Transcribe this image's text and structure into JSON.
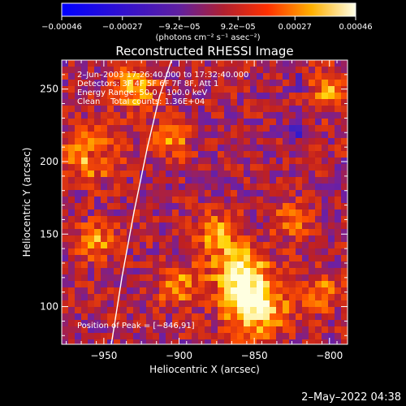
{
  "chart_data": {
    "type": "heatmap",
    "title": "Reconstructed RHESSI Image",
    "xlabel": "Heliocentric X (arcsec)",
    "ylabel": "Heliocentric Y (arcsec)",
    "xlim": [
      -978,
      -788
    ],
    "ylim": [
      74,
      270
    ],
    "xticks": [
      -950,
      -900,
      -850,
      -800
    ],
    "xtick_labels": [
      "−950",
      "−900",
      "−850",
      "−800"
    ],
    "yticks": [
      100,
      150,
      200,
      250
    ],
    "ytick_labels": [
      "100",
      "150",
      "200",
      "250"
    ],
    "colorbar": {
      "range": [
        -0.00046,
        0.00046
      ],
      "ticks": [
        -0.00046,
        -0.00027,
        -9.2e-05,
        9.2e-05,
        0.00027,
        0.00046
      ],
      "tick_labels": [
        "−0.00046",
        "−0.00027",
        "−9.2e−05",
        "9.2e−05",
        "0.00027",
        "0.00046"
      ],
      "units_label": "(photons cm⁻² s⁻¹ asec⁻²)"
    },
    "limb_curve": [
      [
        -945,
        74
      ],
      [
        -938,
        120
      ],
      [
        -930,
        165
      ],
      [
        -921,
        210
      ],
      [
        -913,
        245
      ],
      [
        -905,
        270
      ]
    ],
    "peak": [
      -846,
      91
    ],
    "annotations": [
      "2–Jun–2003 17:26:40.000 to 17:32:40.000",
      "Detectors: 3F 4F 5F 6F 7F 8F, Att 1",
      "Energy Range: 50.0 – 100.0 keV",
      "Clean    Total counts: 1.36E+04",
      "Position of Peak = [−846,91]"
    ]
  },
  "colors": {
    "background": "#000000",
    "colormap": [
      "#0000ff",
      "#4020c0",
      "#7020a0",
      "#c02020",
      "#ff5000",
      "#ffd000",
      "#ffffe0"
    ]
  },
  "footer_timestamp": "2–May–2022 04:38"
}
